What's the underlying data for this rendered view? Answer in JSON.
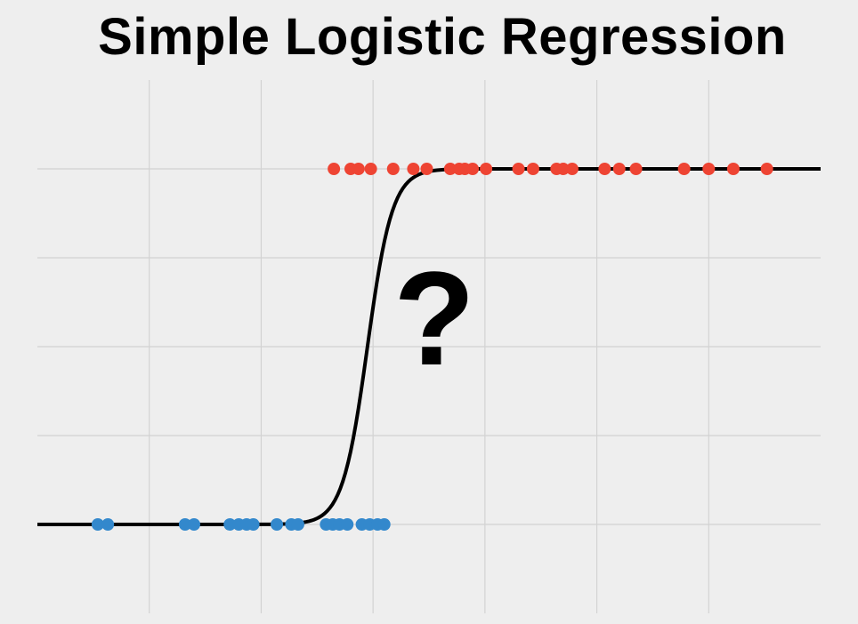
{
  "chart_data": {
    "type": "scatter",
    "title": "Simple Logistic Regression",
    "xlabel": "",
    "ylabel": "",
    "xlim": [
      -3,
      4
    ],
    "ylim": [
      -0.25,
      1.25
    ],
    "xticks": [
      -2,
      -1,
      0,
      1,
      2,
      3
    ],
    "yticks": [
      0,
      0.25,
      0.5,
      0.75,
      1
    ],
    "grid": true,
    "annotation": "?",
    "curve": {
      "type": "logistic",
      "x0": -0.05,
      "k": 9,
      "color": "#000000"
    },
    "series": [
      {
        "color": "#3388cc",
        "y": 0,
        "x": [
          -2.46,
          -2.37,
          -1.68,
          -1.6,
          -1.28,
          -1.2,
          -1.13,
          -1.07,
          -0.86,
          -0.73,
          -0.67,
          -0.42,
          -0.36,
          -0.3,
          -0.23,
          -0.1,
          -0.03,
          0.04,
          0.1
        ]
      },
      {
        "color": "#ee4433",
        "y": 1,
        "x": [
          -0.35,
          -0.2,
          -0.13,
          -0.02,
          0.18,
          0.36,
          0.48,
          0.69,
          0.77,
          0.82,
          0.89,
          1.01,
          1.3,
          1.43,
          1.64,
          1.7,
          1.78,
          2.07,
          2.2,
          2.35,
          2.78,
          3.0,
          3.22,
          3.52
        ]
      }
    ]
  }
}
